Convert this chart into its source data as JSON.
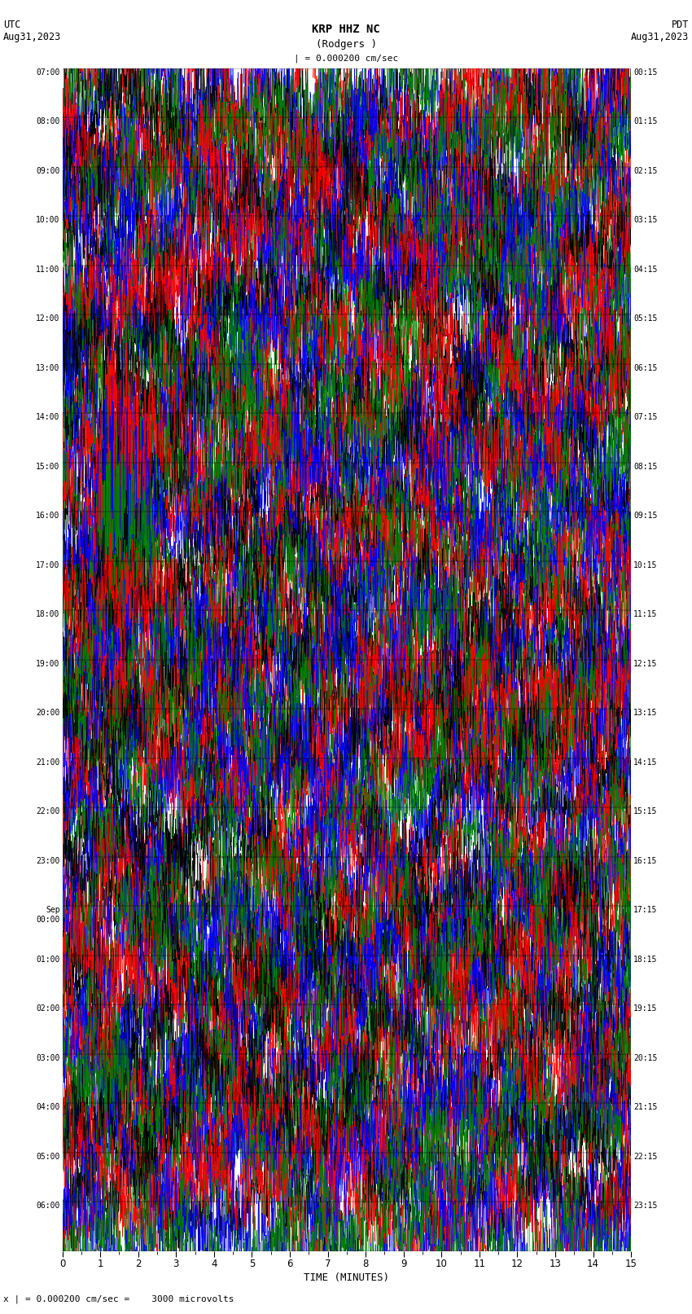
{
  "title_line1": "KRP HHZ NC",
  "title_line2": "(Rodgers )",
  "scale_text": "| = 0.000200 cm/sec",
  "left_header1": "UTC",
  "left_header2": "Aug31,2023",
  "right_header1": "PDT",
  "right_header2": "Aug31,2023",
  "xlabel": "TIME (MINUTES)",
  "bottom_note": "x | = 0.000200 cm/sec =    3000 microvolts",
  "x_max": 15,
  "left_times": [
    "07:00",
    "08:00",
    "09:00",
    "10:00",
    "11:00",
    "12:00",
    "13:00",
    "14:00",
    "15:00",
    "16:00",
    "17:00",
    "18:00",
    "19:00",
    "20:00",
    "21:00",
    "22:00",
    "23:00",
    "Sep\n00:00",
    "01:00",
    "02:00",
    "03:00",
    "04:00",
    "05:00",
    "06:00"
  ],
  "right_times": [
    "00:15",
    "01:15",
    "02:15",
    "03:15",
    "04:15",
    "05:15",
    "06:15",
    "07:15",
    "08:15",
    "09:15",
    "10:15",
    "11:15",
    "12:15",
    "13:15",
    "14:15",
    "15:15",
    "16:15",
    "17:15",
    "18:15",
    "19:15",
    "20:15",
    "21:15",
    "22:15",
    "23:15"
  ],
  "n_rows": 24,
  "n_traces_per_row": 4,
  "colors": [
    "black",
    "red",
    "blue",
    "green"
  ],
  "bg_color": "white",
  "fig_width": 8.5,
  "fig_height": 16.13,
  "dpi": 100
}
